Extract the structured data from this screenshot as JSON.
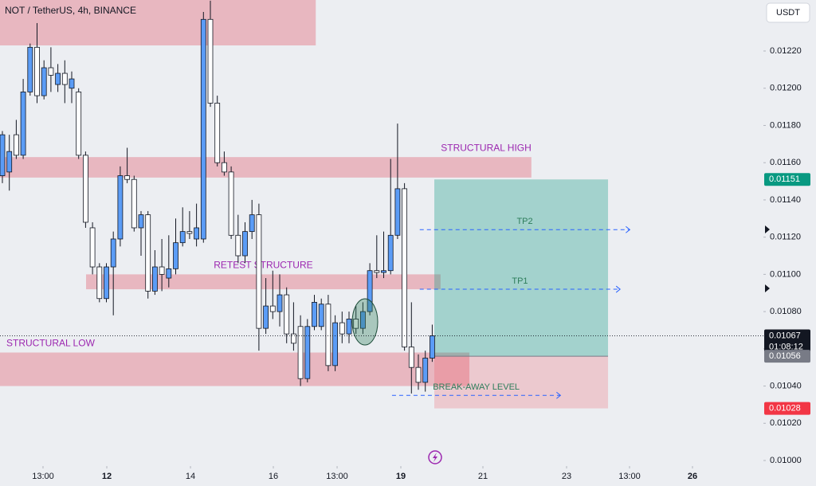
{
  "chart_data": {
    "type": "candlestick",
    "title": "NOT / TetherUS, 4h, BINANCE",
    "currency": "USDT",
    "up_color": "#5b9cf6",
    "down_color": "#ffffff",
    "wick_color": "#131722",
    "grid": false,
    "x": [
      0,
      1,
      2,
      3,
      4,
      5,
      6,
      7,
      8,
      9,
      10,
      11,
      12,
      13,
      14,
      15,
      16,
      17,
      18,
      19,
      20,
      21,
      22,
      23,
      24,
      25,
      26,
      27,
      28,
      29,
      30,
      31,
      32,
      33,
      34,
      35,
      36,
      37,
      38,
      39,
      40,
      41,
      42,
      43,
      44,
      45,
      46,
      47,
      48,
      49,
      50,
      51,
      52,
      53,
      54,
      55,
      56,
      57,
      58,
      59,
      60,
      61,
      62
    ],
    "open": [
      0.01153,
      0.01155,
      0.01175,
      0.01164,
      0.01198,
      0.01222,
      0.01196,
      0.01211,
      0.01202,
      0.01208,
      0.012,
      0.01198,
      0.01164,
      0.01125,
      0.01104,
      0.01087,
      0.01104,
      0.01119,
      0.01153,
      0.01151,
      0.01125,
      0.01132,
      0.01091,
      0.01104,
      0.01098,
      0.01103,
      0.01117,
      0.01123,
      0.01119,
      0.01119,
      0.01237,
      0.01192,
      0.0116,
      0.01155,
      0.01121,
      0.0111,
      0.01123,
      0.01132,
      0.01071,
      0.01083,
      0.0108,
      0.01089,
      0.01068,
      0.01072,
      0.01044,
      0.01072,
      0.01072,
      0.01084,
      0.01051,
      0.01074,
      0.01068,
      0.01076,
      0.01071,
      0.0108,
      0.01102,
      0.01101,
      0.01102,
      0.01121,
      0.01146,
      0.01061,
      0.0105,
      0.01042,
      0.01055
    ],
    "high": [
      0.01177,
      0.01175,
      0.01183,
      0.01205,
      0.01224,
      0.01235,
      0.01215,
      0.01222,
      0.01213,
      0.01215,
      0.01209,
      0.012,
      0.01166,
      0.01128,
      0.01106,
      0.01106,
      0.01123,
      0.01158,
      0.01168,
      0.01153,
      0.01134,
      0.01134,
      0.01113,
      0.01119,
      0.01121,
      0.0113,
      0.01136,
      0.01134,
      0.01138,
      0.01241,
      0.01247,
      0.01196,
      0.01166,
      0.01158,
      0.01132,
      0.01128,
      0.0114,
      0.01138,
      0.01098,
      0.01102,
      0.011,
      0.01093,
      0.01085,
      0.01078,
      0.01076,
      0.01089,
      0.01087,
      0.01089,
      0.01078,
      0.0108,
      0.0108,
      0.01083,
      0.01085,
      0.01106,
      0.01121,
      0.01123,
      0.01162,
      0.01181,
      0.01149,
      0.01085,
      0.01057,
      0.01059,
      0.01073
    ],
    "low": [
      0.01149,
      0.01145,
      0.01162,
      0.01162,
      0.01196,
      0.01192,
      0.01194,
      0.01198,
      0.01198,
      0.01192,
      0.01192,
      0.01162,
      0.01125,
      0.011,
      0.01085,
      0.01085,
      0.01078,
      0.01115,
      0.01149,
      0.01123,
      0.0111,
      0.01087,
      0.01089,
      0.01091,
      0.01093,
      0.011,
      0.01115,
      0.01119,
      0.01115,
      0.01117,
      0.0119,
      0.01158,
      0.01153,
      0.01119,
      0.01106,
      0.01106,
      0.01119,
      0.01059,
      0.01068,
      0.01076,
      0.01072,
      0.01063,
      0.01059,
      0.0104,
      0.01042,
      0.0107,
      0.0107,
      0.01048,
      0.01048,
      0.01063,
      0.01063,
      0.01068,
      0.01068,
      0.01078,
      0.01098,
      0.01098,
      0.011,
      0.01119,
      0.01059,
      0.01036,
      0.01038,
      0.01037,
      0.01053
    ],
    "close": [
      0.01175,
      0.01166,
      0.01164,
      0.01198,
      0.01222,
      0.01196,
      0.01211,
      0.01207,
      0.01208,
      0.01202,
      0.01205,
      0.01164,
      0.01128,
      0.01104,
      0.01087,
      0.01104,
      0.01119,
      0.01153,
      0.01151,
      0.01125,
      0.01132,
      0.01091,
      0.01104,
      0.011,
      0.01103,
      0.01117,
      0.01123,
      0.01122,
      0.01125,
      0.01237,
      0.01192,
      0.0116,
      0.01155,
      0.01121,
      0.0111,
      0.01123,
      0.01132,
      0.01071,
      0.01083,
      0.0108,
      0.01089,
      0.01068,
      0.01063,
      0.01044,
      0.01072,
      0.01085,
      0.01084,
      0.01051,
      0.01074,
      0.01068,
      0.01076,
      0.01071,
      0.0108,
      0.01102,
      0.01101,
      0.01102,
      0.01121,
      0.01146,
      0.01061,
      0.0105,
      0.01042,
      0.01055,
      0.01067
    ],
    "xlim": [
      -0.345,
      109.77
    ],
    "xticks": [
      {
        "value": 5.86,
        "label": "13:00"
      },
      {
        "value": 15.06,
        "label": "12"
      },
      {
        "value": 27.13,
        "label": "14"
      },
      {
        "value": 39.08,
        "label": "16"
      },
      {
        "value": 48.28,
        "label": "13:00"
      },
      {
        "value": 57.47,
        "label": "19"
      },
      {
        "value": 69.31,
        "label": "21"
      },
      {
        "value": 81.38,
        "label": "23"
      },
      {
        "value": 90.46,
        "label": "13:00"
      },
      {
        "value": 99.54,
        "label": "26"
      }
    ],
    "ylim": [
      0.00997,
      0.012474
    ],
    "yticks": [
      {
        "value": 0.01,
        "label": "0.01000"
      },
      {
        "value": 0.0102,
        "label": "0.01020"
      },
      {
        "value": 0.0104,
        "label": "0.01040"
      },
      {
        "value": 0.0106,
        "label": "0.01060"
      },
      {
        "value": 0.0108,
        "label": "0.01080"
      },
      {
        "value": 0.011,
        "label": "0.01100"
      },
      {
        "value": 0.0112,
        "label": "0.01120"
      },
      {
        "value": 0.0114,
        "label": "0.01140"
      },
      {
        "value": 0.0116,
        "label": "0.01160"
      },
      {
        "value": 0.0118,
        "label": "0.01180"
      },
      {
        "value": 0.012,
        "label": "0.01200"
      },
      {
        "value": 0.0122,
        "label": "0.01220"
      }
    ],
    "zones": [
      {
        "xlim": [
          -0.345,
          45.2
        ],
        "ylim": [
          0.01223,
          0.012474
        ]
      },
      {
        "xlim": [
          -0.345,
          76.3
        ],
        "ylim": [
          0.01152,
          0.01163
        ],
        "label": "STRUCTURAL HIGH"
      },
      {
        "xlim": [
          12.07,
          63.2
        ],
        "ylim": [
          0.01092,
          0.011
        ],
        "label": "RETEST STRUCTURE"
      },
      {
        "xlim": [
          -0.345,
          67.36
        ],
        "ylim": [
          0.0104,
          0.01058
        ],
        "label": "STRUCTURAL LOW"
      }
    ],
    "position": {
      "xlim": [
        62.3,
        87.36
      ],
      "entry": 0.01056,
      "target": 0.01151,
      "stop": 0.01028
    },
    "levels": [
      {
        "label": "TP2",
        "value": 0.01124,
        "xlim": [
          60.2,
          90.5
        ]
      },
      {
        "label": "TP1",
        "value": 0.01092,
        "xlim": [
          60.2,
          89.1
        ]
      },
      {
        "label": "BREAK-AWAY LEVEL",
        "value": 0.01035,
        "xlim": [
          56.2,
          80.5
        ]
      }
    ],
    "price_tags": [
      {
        "value": 0.01151,
        "label": "0.01151",
        "color": "#089981"
      },
      {
        "value": 0.01067,
        "label": "0.01067",
        "sub": "01:08:12",
        "color": "#131722"
      },
      {
        "value": 0.01056,
        "label": "0.01056",
        "color": "#787b86"
      },
      {
        "value": 0.01028,
        "label": "0.01028",
        "color": "#f23645"
      }
    ]
  }
}
